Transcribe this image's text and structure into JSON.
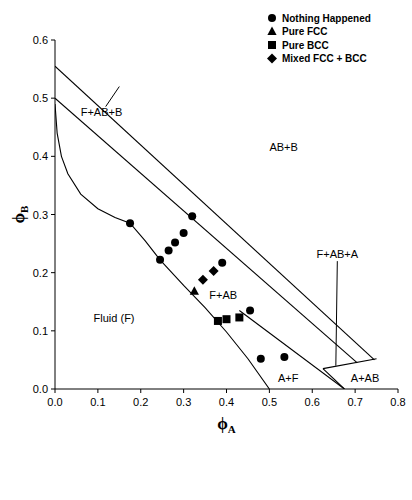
{
  "chart_data": {
    "type": "scatter",
    "x_label": "ϕA",
    "y_label": "ϕB",
    "xlim": [
      0,
      0.8
    ],
    "ylim": [
      0,
      0.6
    ],
    "xticks": [
      {
        "value": 0,
        "label": "0.0"
      },
      0.1,
      0.2,
      0.3,
      0.4,
      0.5,
      0.6,
      0.7,
      0.8
    ],
    "yticks": [
      {
        "value": 0,
        "label": "0.0"
      },
      0.1,
      0.2,
      0.3,
      0.4,
      0.5,
      0.6
    ],
    "grid": false,
    "legend": "upper right",
    "series": [
      {
        "name": "Nothing Happened",
        "marker": "circle",
        "color": "#000000",
        "x": [
          0.175,
          0.245,
          0.265,
          0.28,
          0.3,
          0.32,
          0.39,
          0.455,
          0.48,
          0.535
        ],
        "values": [
          0.285,
          0.222,
          0.238,
          0.252,
          0.268,
          0.297,
          0.217,
          0.135,
          0.052,
          0.055
        ]
      },
      {
        "name": "Pure FCC",
        "marker": "triangle",
        "color": "#000000",
        "x": [
          0.325
        ],
        "values": [
          0.168
        ]
      },
      {
        "name": "Pure BCC",
        "marker": "square",
        "color": "#000000",
        "x": [
          0.38,
          0.4,
          0.43
        ],
        "values": [
          0.117,
          0.12,
          0.123
        ]
      },
      {
        "name": "Mixed FCC + BCC",
        "marker": "diamond",
        "color": "#000000",
        "x": [
          0.345,
          0.37
        ],
        "values": [
          0.188,
          0.203
        ]
      }
    ],
    "boundary_lines": [
      {
        "x": [
          0,
          0.005,
          0.015,
          0.03,
          0.06,
          0.1,
          0.14,
          0.175,
          0.21,
          0.245,
          0.3,
          0.35,
          0.4,
          0.45,
          0.5
        ],
        "y": [
          0.49,
          0.44,
          0.4,
          0.37,
          0.335,
          0.31,
          0.295,
          0.285,
          0.255,
          0.222,
          0.178,
          0.14,
          0.098,
          0.052,
          0
        ]
      },
      {
        "x": [
          0,
          0.745
        ],
        "y": [
          0.555,
          0.05
        ]
      },
      {
        "x": [
          0,
          0.705
        ],
        "y": [
          0.5,
          0.045
        ]
      },
      {
        "x": [
          0.625,
          0.75
        ],
        "y": [
          0.035,
          0.052
        ]
      },
      {
        "x": [
          0.43,
          0.675
        ],
        "y": [
          0.135,
          0
        ]
      },
      {
        "x": [
          0.625,
          0.675
        ],
        "y": [
          0.035,
          0
        ]
      }
    ],
    "annotations": [
      {
        "text": "F+AB+B",
        "x": 0.06,
        "y": 0.47,
        "pointer": [
          0.15,
          0.52
        ]
      },
      {
        "text": "AB+B",
        "x": 0.5,
        "y": 0.41
      },
      {
        "text": "F+AB",
        "x": 0.36,
        "y": 0.155
      },
      {
        "text": "F+AB+A",
        "x": 0.61,
        "y": 0.225,
        "pointer": [
          0.655,
          0.04
        ]
      },
      {
        "text": "Fluid (F)",
        "x": 0.09,
        "y": 0.115
      },
      {
        "text": "A+F",
        "x": 0.52,
        "y": 0.012
      },
      {
        "text": "A+AB",
        "x": 0.69,
        "y": 0.012
      }
    ]
  }
}
